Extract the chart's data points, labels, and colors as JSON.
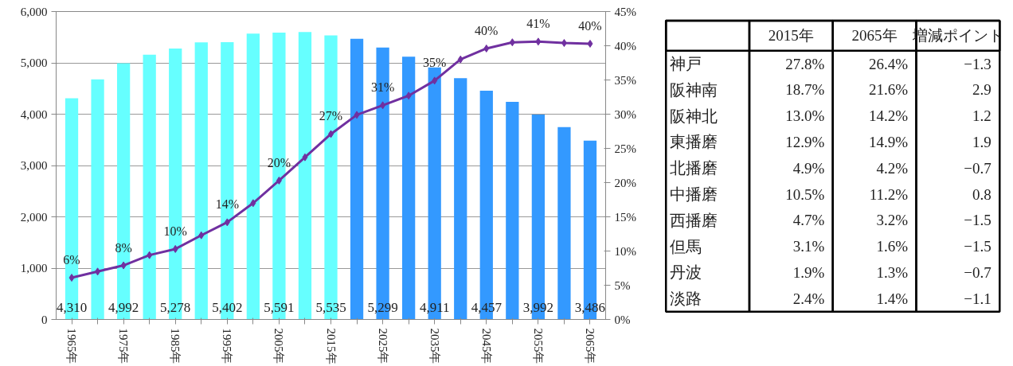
{
  "chart_data": [
    {
      "type": "bar",
      "categories": [
        "1965年",
        null,
        "1975年",
        null,
        "1985年",
        null,
        "1995年",
        null,
        "2005年",
        null,
        "2015年",
        null,
        "2025年",
        null,
        "2035年",
        null,
        "2045年",
        null,
        "2055年",
        null,
        "2065年"
      ],
      "series": [
        {
          "type": "bar",
          "colors": [
            "#66ffff",
            "#66ffff",
            "#66ffff",
            "#66ffff",
            "#66ffff",
            "#66ffff",
            "#66ffff",
            "#66ffff",
            "#66ffff",
            "#66ffff",
            "#66ffff",
            "#3399ff",
            "#3399ff",
            "#3399ff",
            "#3399ff",
            "#3399ff",
            "#3399ff",
            "#3399ff",
            "#3399ff",
            "#3399ff",
            "#3399ff"
          ],
          "values": [
            4310,
            4680,
            4992,
            5160,
            5278,
            5400,
            5402,
            5570,
            5591,
            5600,
            5535,
            5470,
            5299,
            5120,
            4911,
            4700,
            4457,
            4240,
            3992,
            3750,
            3486
          ],
          "value_labels": [
            "4,310",
            null,
            "4,992",
            null,
            "5,278",
            null,
            "5,402",
            null,
            "5,591",
            null,
            "5,535",
            null,
            "5,299",
            null,
            "4,911",
            null,
            "4,457",
            null,
            "3,992",
            null,
            "3,486"
          ]
        },
        {
          "type": "line",
          "axis": "y2",
          "color": "#7030a0",
          "values": [
            6.1,
            7.0,
            7.9,
            9.4,
            10.3,
            12.3,
            14.2,
            17.0,
            20.3,
            23.7,
            27.1,
            29.9,
            31.3,
            32.7,
            34.9,
            38.0,
            39.6,
            40.5,
            40.6,
            40.4,
            40.3
          ],
          "value_labels": [
            "6%",
            null,
            "8%",
            null,
            "10%",
            null,
            "14%",
            null,
            "20%",
            null,
            "27%",
            null,
            "31%",
            null,
            "35%",
            null,
            "40%",
            null,
            "41%",
            null,
            "40%"
          ]
        }
      ],
      "ylim": [
        0,
        6000
      ],
      "yticks": [
        {
          "value": 0,
          "label": "0"
        },
        {
          "value": 1000,
          "label": "1,000"
        },
        {
          "value": 2000,
          "label": "2,000"
        },
        {
          "value": 3000,
          "label": "3,000"
        },
        {
          "value": 4000,
          "label": "4,000"
        },
        {
          "value": 5000,
          "label": "5,000"
        },
        {
          "value": 6000,
          "label": "6,000"
        }
      ],
      "y2lim": [
        0,
        45
      ],
      "y2ticks": [
        {
          "value": 0,
          "label": "0%"
        },
        {
          "value": 5,
          "label": "5%"
        },
        {
          "value": 10,
          "label": "10%"
        },
        {
          "value": 15,
          "label": "15%"
        },
        {
          "value": 20,
          "label": "20%"
        },
        {
          "value": 25,
          "label": "25%"
        },
        {
          "value": 30,
          "label": "30%"
        },
        {
          "value": 35,
          "label": "35%"
        },
        {
          "value": 40,
          "label": "40%"
        },
        {
          "value": 45,
          "label": "45%"
        }
      ],
      "grid": "y",
      "marker": "diamond",
      "line_style": "solid"
    },
    {
      "type": "other",
      "categories": [
        "2015年",
        "2065年",
        "増減ポイント"
      ],
      "y_categories": [
        "神戸",
        "阪神南",
        "阪神北",
        "東播磨",
        "北播磨",
        "中播磨",
        "西播磨",
        "但馬",
        "丹波",
        "淡路"
      ],
      "cell_labels": [
        [
          "27.8%",
          "26.4%",
          "−1.3"
        ],
        [
          "18.7%",
          "21.6%",
          "2.9"
        ],
        [
          "13.0%",
          "14.2%",
          "1.2"
        ],
        [
          "12.9%",
          "14.9%",
          "1.9"
        ],
        [
          "4.9%",
          "4.2%",
          "−0.7"
        ],
        [
          "10.5%",
          "11.2%",
          "0.8"
        ],
        [
          "4.7%",
          "3.2%",
          "−1.5"
        ],
        [
          "3.1%",
          "1.6%",
          "−1.5"
        ],
        [
          "1.9%",
          "1.3%",
          "−0.7"
        ],
        [
          "2.4%",
          "1.4%",
          "−1.1"
        ]
      ]
    }
  ]
}
